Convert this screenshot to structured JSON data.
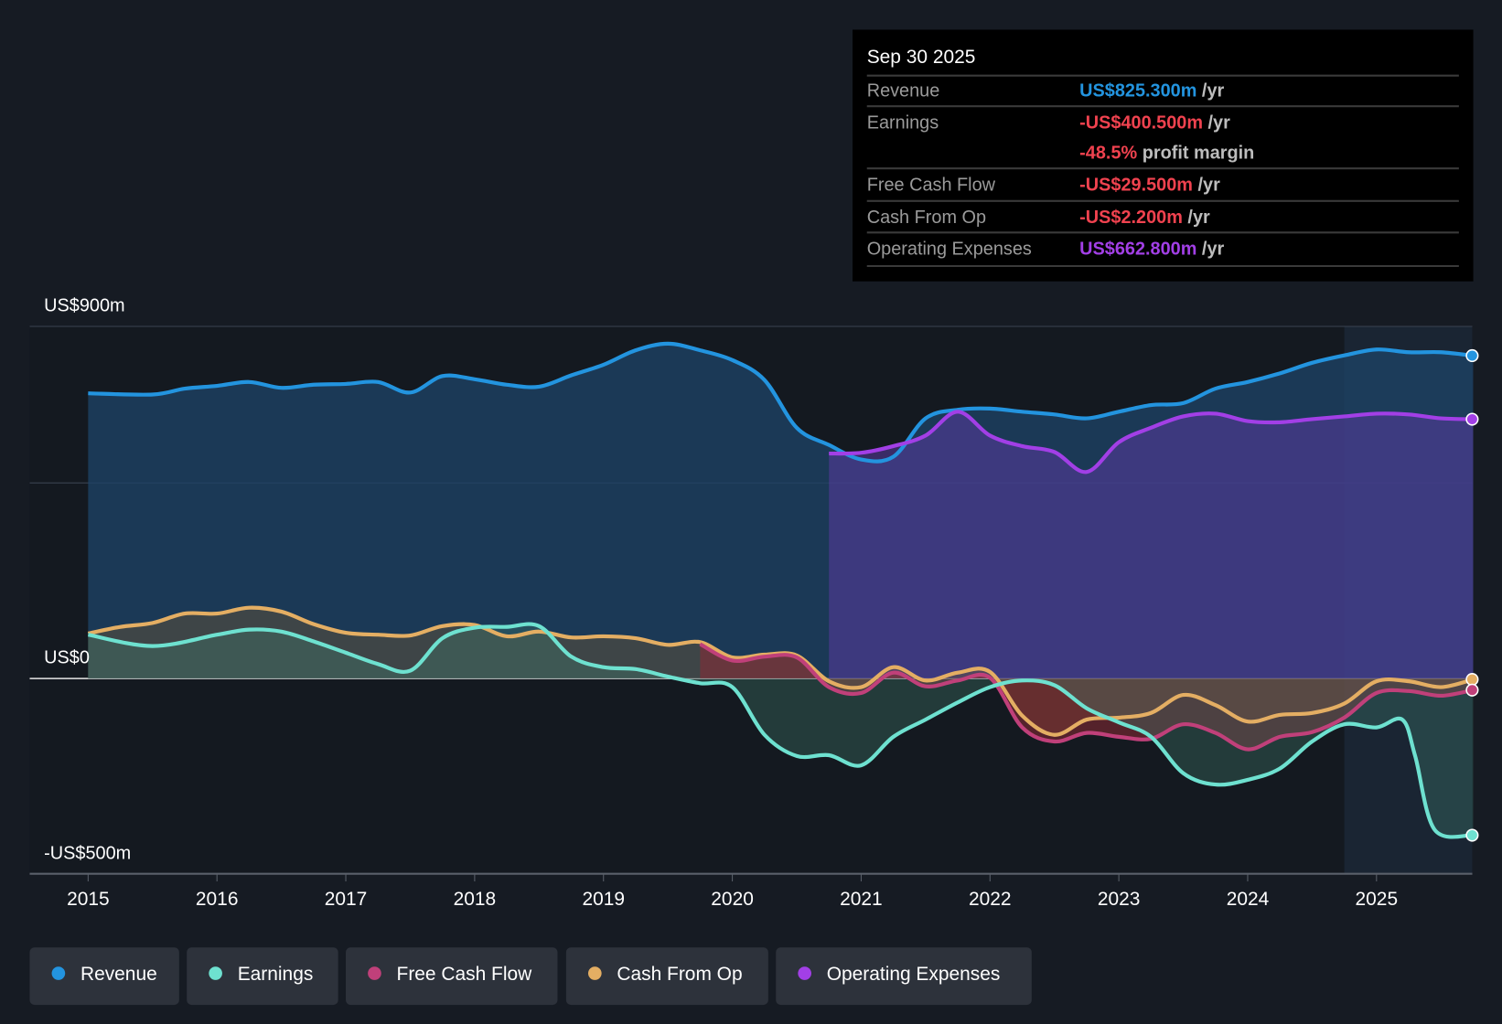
{
  "chart_data": {
    "type": "area",
    "x_range": [
      2014.55,
      2025.75
    ],
    "ylim": [
      -500,
      900
    ],
    "y_unit": "US$m",
    "y_tick_labels": [
      {
        "value": 900,
        "label": "US$900m"
      },
      {
        "value": 0,
        "label": "US$0"
      },
      {
        "value": -500,
        "label": "-US$500m"
      }
    ],
    "gridlines": [
      900,
      500,
      0
    ],
    "x_ticks": [
      2015,
      2016,
      2017,
      2018,
      2019,
      2020,
      2021,
      2022,
      2023,
      2024,
      2025
    ],
    "x_tick_labels": [
      "2015",
      "2016",
      "2017",
      "2018",
      "2019",
      "2020",
      "2021",
      "2022",
      "2023",
      "2024",
      "2025"
    ],
    "highlight_range": [
      2024.75,
      2025.75
    ],
    "legend_position": "bottom-left",
    "series": [
      {
        "key": "revenue",
        "name": "Revenue",
        "color": "#2394df",
        "x": [
          2015,
          2015.5,
          2015.75,
          2016,
          2016.25,
          2016.5,
          2016.75,
          2017,
          2017.25,
          2017.5,
          2017.75,
          2018,
          2018.25,
          2018.5,
          2018.75,
          2019,
          2019.25,
          2019.5,
          2019.75,
          2020,
          2020.25,
          2020.5,
          2020.75,
          2021,
          2021.25,
          2021.5,
          2021.75,
          2022,
          2022.25,
          2022.5,
          2022.75,
          2023,
          2023.25,
          2023.5,
          2023.75,
          2024,
          2024.25,
          2024.5,
          2024.75,
          2025,
          2025.25,
          2025.5,
          2025.75
        ],
        "y": [
          729,
          726,
          741,
          748,
          758,
          743,
          751,
          753,
          758,
          731,
          773,
          765,
          751,
          746,
          775,
          802,
          839,
          856,
          839,
          814,
          763,
          641,
          597,
          560,
          567,
          665,
          687,
          690,
          682,
          675,
          665,
          682,
          699,
          704,
          741,
          758,
          780,
          807,
          826,
          841,
          834,
          834,
          825.3
        ]
      },
      {
        "key": "opex",
        "name": "Operating Expenses",
        "color": "#a23fe6",
        "x": [
          2020.75,
          2021,
          2021.25,
          2021.5,
          2021.75,
          2022,
          2022.25,
          2022.5,
          2022.75,
          2023,
          2023.25,
          2023.5,
          2023.75,
          2024,
          2024.25,
          2024.5,
          2024.75,
          2025,
          2025.25,
          2025.5,
          2025.75
        ],
        "y": [
          575,
          577,
          594,
          621,
          682,
          621,
          594,
          579,
          528,
          604,
          641,
          670,
          677,
          658,
          655,
          663,
          670,
          677,
          675,
          665,
          662.8
        ]
      },
      {
        "key": "cfo",
        "name": "Cash From Op",
        "color": "#e4ae63",
        "x": [
          2015,
          2015.25,
          2015.5,
          2015.75,
          2016,
          2016.25,
          2016.5,
          2016.75,
          2017,
          2017.25,
          2017.5,
          2017.75,
          2018,
          2018.25,
          2018.5,
          2018.75,
          2019,
          2019.25,
          2019.5,
          2019.75,
          2020,
          2020.25,
          2020.5,
          2020.75,
          2021,
          2021.25,
          2021.5,
          2021.75,
          2022,
          2022.25,
          2022.5,
          2022.75,
          2023,
          2023.25,
          2023.5,
          2023.75,
          2024,
          2024.25,
          2024.5,
          2024.75,
          2025,
          2025.25,
          2025.5,
          2025.75
        ],
        "y": [
          115,
          132,
          142,
          166,
          166,
          181,
          171,
          139,
          117,
          112,
          110,
          134,
          137,
          108,
          120,
          105,
          108,
          103,
          86,
          93,
          54,
          61,
          59,
          -7,
          -22,
          29,
          -5,
          15,
          17,
          -95,
          -144,
          -105,
          -100,
          -88,
          -42,
          -68,
          -110,
          -93,
          -88,
          -64,
          -7,
          -7,
          -22,
          -2.2
        ]
      },
      {
        "key": "fcf",
        "name": "Free Cash Flow",
        "color": "#c0407a",
        "x": [
          2019.75,
          2020,
          2020.25,
          2020.5,
          2020.75,
          2021,
          2021.25,
          2021.5,
          2021.75,
          2022,
          2022.25,
          2022.5,
          2022.75,
          2023,
          2023.25,
          2023.5,
          2023.75,
          2024,
          2024.25,
          2024.5,
          2024.75,
          2025,
          2025.25,
          2025.5,
          2025.75
        ],
        "y": [
          88,
          46,
          56,
          54,
          -22,
          -37,
          15,
          -20,
          -5,
          2,
          -125,
          -161,
          -139,
          -149,
          -154,
          -117,
          -139,
          -181,
          -149,
          -137,
          -100,
          -37,
          -32,
          -44,
          -29.5
        ]
      },
      {
        "key": "earnings",
        "name": "Earnings",
        "color": "#6ee1d0",
        "x": [
          2015,
          2015.5,
          2016,
          2016.25,
          2016.5,
          2016.75,
          2017,
          2017.25,
          2017.5,
          2017.75,
          2018,
          2018.25,
          2018.5,
          2018.75,
          2019,
          2019.25,
          2019.5,
          2019.75,
          2020,
          2020.25,
          2020.5,
          2020.75,
          2021,
          2021.25,
          2021.5,
          2021.75,
          2022,
          2022.25,
          2022.5,
          2022.75,
          2023,
          2023.25,
          2023.5,
          2023.75,
          2024,
          2024.25,
          2024.5,
          2024.75,
          2025,
          2025.2,
          2025.3,
          2025.45,
          2025.75
        ],
        "y": [
          112,
          83,
          112,
          125,
          120,
          95,
          66,
          37,
          20,
          103,
          130,
          132,
          134,
          56,
          29,
          24,
          5,
          -12,
          -22,
          -144,
          -198,
          -196,
          -222,
          -149,
          -105,
          -61,
          -22,
          -5,
          -17,
          -76,
          -112,
          -149,
          -242,
          -271,
          -259,
          -230,
          -161,
          -117,
          -125,
          -105,
          -198,
          -386,
          -400.5
        ]
      }
    ]
  },
  "tooltip": {
    "date": "Sep 30 2025",
    "rows": [
      {
        "label": "Revenue",
        "value": "US$825.300m",
        "unit": " /yr",
        "color": "#2394df"
      },
      {
        "label": "Earnings",
        "value": "-US$400.500m",
        "unit": " /yr",
        "color": "#f0424f"
      },
      {
        "label": "",
        "value": "-48.5%",
        "unit": " profit margin",
        "color": "#f0424f"
      },
      {
        "label": "Free Cash Flow",
        "value": "-US$29.500m",
        "unit": " /yr",
        "color": "#f0424f"
      },
      {
        "label": "Cash From Op",
        "value": "-US$2.200m",
        "unit": " /yr",
        "color": "#f0424f"
      },
      {
        "label": "Operating Expenses",
        "value": "US$662.800m",
        "unit": " /yr",
        "color": "#a23fe6"
      }
    ]
  },
  "legend": [
    {
      "label": "Revenue",
      "color": "#2394df"
    },
    {
      "label": "Earnings",
      "color": "#6ee1d0"
    },
    {
      "label": "Free Cash Flow",
      "color": "#c0407a"
    },
    {
      "label": "Cash From Op",
      "color": "#e4ae63"
    },
    {
      "label": "Operating Expenses",
      "color": "#a23fe6"
    }
  ]
}
